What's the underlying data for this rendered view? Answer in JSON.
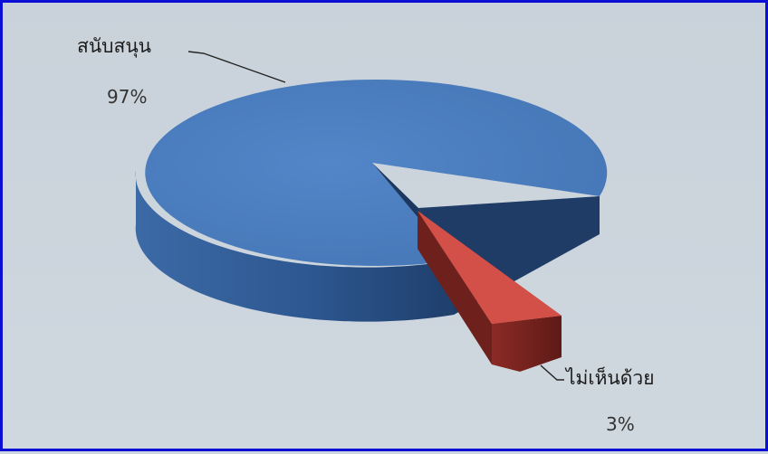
{
  "chart_data": {
    "type": "pie",
    "style": "3d-exploded",
    "slices": [
      {
        "label": "สนับสนุน",
        "value": 97,
        "value_label": "97%",
        "color": "#4a7bbd",
        "side_color": "#2f5a93"
      },
      {
        "label": "ไม่เห็นด้วย",
        "value": 3,
        "value_label": "3%",
        "color": "#c0433e",
        "side_color": "#7a2320"
      }
    ],
    "legend": "none",
    "frame_color": "#0b0fd6"
  }
}
